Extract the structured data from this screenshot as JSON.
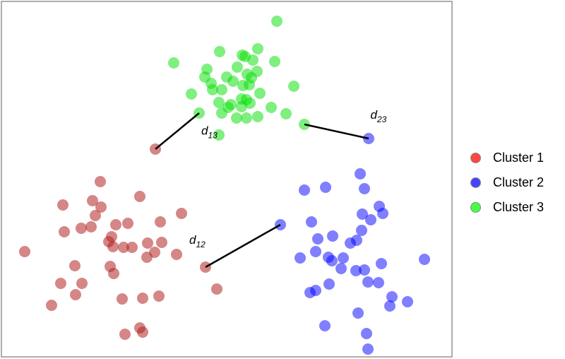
{
  "chart_data": {
    "type": "scatter",
    "title": "",
    "xlabel": "",
    "ylabel": "",
    "axes_visible": false,
    "grid": false,
    "frame": true,
    "xlim": [
      0,
      638
    ],
    "ylim": [
      0,
      503
    ],
    "legend_placement": "right",
    "series": [
      {
        "name": "Cluster 1",
        "legend_color": "#ff4444",
        "point_color": "#b22222",
        "points": [
          [
            140,
            248
          ],
          [
            196,
            227
          ],
          [
            87,
            215
          ],
          [
            129,
            221
          ],
          [
            141,
            212
          ],
          [
            133,
            200
          ],
          [
            255,
            203
          ],
          [
            162,
            187
          ],
          [
            179,
            189
          ],
          [
            225,
            191
          ],
          [
            89,
            177
          ],
          [
            113,
            182
          ],
          [
            127,
            184
          ],
          [
            156,
            170
          ],
          [
            152,
            163
          ],
          [
            158,
            156
          ],
          [
            173,
            155
          ],
          [
            185,
            155
          ],
          [
            207,
            161
          ],
          [
            227,
            162
          ],
          [
            217,
            148
          ],
          [
            206,
            141
          ],
          [
            248,
            145
          ],
          [
            33,
            149
          ],
          [
            104,
            129
          ],
          [
            154,
            128
          ],
          [
            159,
            118
          ],
          [
            289,
            127
          ],
          [
            305,
            96
          ],
          [
            84,
            104
          ],
          [
            114,
            104
          ],
          [
            105,
            88
          ],
          [
            71,
            73
          ],
          [
            171,
            82
          ],
          [
            200,
            83
          ],
          [
            223,
            86
          ],
          [
            196,
            41
          ],
          [
            200,
            35
          ],
          [
            175,
            32
          ],
          [
            218,
            294
          ]
        ]
      },
      {
        "name": "Cluster 2",
        "legend_color": "#4444ff",
        "point_color": "#0000ff",
        "points": [
          [
            508,
            259
          ],
          [
            429,
            236
          ],
          [
            459,
            240
          ],
          [
            514,
            238
          ],
          [
            535,
            213
          ],
          [
            540,
            203
          ],
          [
            511,
            202
          ],
          [
            523,
            194
          ],
          [
            439,
            191
          ],
          [
            395,
            187
          ],
          [
            510,
            179
          ],
          [
            448,
            167
          ],
          [
            469,
            171
          ],
          [
            503,
            165
          ],
          [
            494,
            161
          ],
          [
            423,
            140
          ],
          [
            445,
            149
          ],
          [
            463,
            141
          ],
          [
            468,
            136
          ],
          [
            484,
            140
          ],
          [
            481,
            125
          ],
          [
            502,
            122
          ],
          [
            514,
            123
          ],
          [
            538,
            132
          ],
          [
            599,
            138
          ],
          [
            519,
            106
          ],
          [
            534,
            105
          ],
          [
            464,
            103
          ],
          [
            437,
            91
          ],
          [
            445,
            94
          ],
          [
            553,
            85
          ],
          [
            550,
            72
          ],
          [
            575,
            78
          ],
          [
            505,
            62
          ],
          [
            458,
            44
          ],
          [
            517,
            33
          ],
          [
            519,
            11
          ],
          [
            520,
            309
          ]
        ]
      },
      {
        "name": "Cluster 3",
        "legend_color": "#44ff44",
        "point_color": "#00e000",
        "points": [
          [
            390,
            475
          ],
          [
            244,
            416
          ],
          [
            309,
            432
          ],
          [
            363,
            436
          ],
          [
            341,
            427
          ],
          [
            345,
            425
          ],
          [
            356,
            420
          ],
          [
            387,
            418
          ],
          [
            334,
            410
          ],
          [
            291,
            407
          ],
          [
            362,
            404
          ],
          [
            348,
            400
          ],
          [
            319,
            396
          ],
          [
            354,
            395
          ],
          [
            288,
            396
          ],
          [
            328,
            390
          ],
          [
            297,
            387
          ],
          [
            342,
            384
          ],
          [
            351,
            385
          ],
          [
            414,
            383
          ],
          [
            299,
            378
          ],
          [
            312,
            378
          ],
          [
            269,
            372
          ],
          [
            366,
            373
          ],
          [
            340,
            365
          ],
          [
            347,
            364
          ],
          [
            308,
            360
          ],
          [
            325,
            357
          ],
          [
            321,
            353
          ],
          [
            352,
            359
          ],
          [
            340,
            354
          ],
          [
            382,
            353
          ],
          [
            403,
            344
          ],
          [
            312,
            345
          ],
          [
            333,
            338
          ],
          [
            347,
            338
          ],
          [
            363,
            340
          ],
          [
            280,
            345
          ],
          [
            429,
            329
          ],
          [
            308,
            314
          ]
        ]
      }
    ],
    "annotations": [
      {
        "label": "d",
        "subscript": "13",
        "from": [
          218,
          294
        ],
        "to": [
          280,
          345
        ]
      },
      {
        "label": "d",
        "subscript": "12",
        "from": [
          289,
          127
        ],
        "to": [
          395,
          187
        ]
      },
      {
        "label": "d",
        "subscript": "23",
        "from": [
          429,
          329
        ],
        "to": [
          520,
          309
        ]
      }
    ]
  },
  "legend": {
    "items": [
      {
        "label": "Cluster 1",
        "color": "#ff4444"
      },
      {
        "label": "Cluster 2",
        "color": "#4444ff"
      },
      {
        "label": "Cluster 3",
        "color": "#44ff44"
      }
    ]
  }
}
